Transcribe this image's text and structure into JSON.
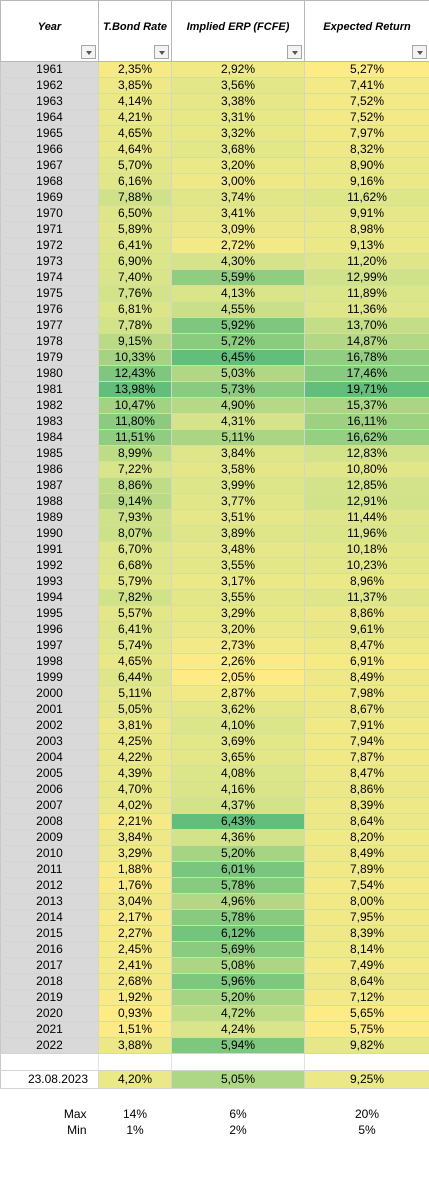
{
  "headers": {
    "year": "Year",
    "tbond": "T.Bond Rate",
    "erp": "Implied ERP (FCFE)",
    "exp": "Expected Return"
  },
  "rows": [
    {
      "year": "1961",
      "tbond": "2,35%",
      "erp": "2,92%",
      "exp": "5,27%"
    },
    {
      "year": "1962",
      "tbond": "3,85%",
      "erp": "3,56%",
      "exp": "7,41%"
    },
    {
      "year": "1963",
      "tbond": "4,14%",
      "erp": "3,38%",
      "exp": "7,52%"
    },
    {
      "year": "1964",
      "tbond": "4,21%",
      "erp": "3,31%",
      "exp": "7,52%"
    },
    {
      "year": "1965",
      "tbond": "4,65%",
      "erp": "3,32%",
      "exp": "7,97%"
    },
    {
      "year": "1966",
      "tbond": "4,64%",
      "erp": "3,68%",
      "exp": "8,32%"
    },
    {
      "year": "1967",
      "tbond": "5,70%",
      "erp": "3,20%",
      "exp": "8,90%"
    },
    {
      "year": "1968",
      "tbond": "6,16%",
      "erp": "3,00%",
      "exp": "9,16%"
    },
    {
      "year": "1969",
      "tbond": "7,88%",
      "erp": "3,74%",
      "exp": "11,62%"
    },
    {
      "year": "1970",
      "tbond": "6,50%",
      "erp": "3,41%",
      "exp": "9,91%"
    },
    {
      "year": "1971",
      "tbond": "5,89%",
      "erp": "3,09%",
      "exp": "8,98%"
    },
    {
      "year": "1972",
      "tbond": "6,41%",
      "erp": "2,72%",
      "exp": "9,13%"
    },
    {
      "year": "1973",
      "tbond": "6,90%",
      "erp": "4,30%",
      "exp": "11,20%"
    },
    {
      "year": "1974",
      "tbond": "7,40%",
      "erp": "5,59%",
      "exp": "12,99%"
    },
    {
      "year": "1975",
      "tbond": "7,76%",
      "erp": "4,13%",
      "exp": "11,89%"
    },
    {
      "year": "1976",
      "tbond": "6,81%",
      "erp": "4,55%",
      "exp": "11,36%"
    },
    {
      "year": "1977",
      "tbond": "7,78%",
      "erp": "5,92%",
      "exp": "13,70%"
    },
    {
      "year": "1978",
      "tbond": "9,15%",
      "erp": "5,72%",
      "exp": "14,87%"
    },
    {
      "year": "1979",
      "tbond": "10,33%",
      "erp": "6,45%",
      "exp": "16,78%"
    },
    {
      "year": "1980",
      "tbond": "12,43%",
      "erp": "5,03%",
      "exp": "17,46%"
    },
    {
      "year": "1981",
      "tbond": "13,98%",
      "erp": "5,73%",
      "exp": "19,71%"
    },
    {
      "year": "1982",
      "tbond": "10,47%",
      "erp": "4,90%",
      "exp": "15,37%"
    },
    {
      "year": "1983",
      "tbond": "11,80%",
      "erp": "4,31%",
      "exp": "16,11%"
    },
    {
      "year": "1984",
      "tbond": "11,51%",
      "erp": "5,11%",
      "exp": "16,62%"
    },
    {
      "year": "1985",
      "tbond": "8,99%",
      "erp": "3,84%",
      "exp": "12,83%"
    },
    {
      "year": "1986",
      "tbond": "7,22%",
      "erp": "3,58%",
      "exp": "10,80%"
    },
    {
      "year": "1987",
      "tbond": "8,86%",
      "erp": "3,99%",
      "exp": "12,85%"
    },
    {
      "year": "1988",
      "tbond": "9,14%",
      "erp": "3,77%",
      "exp": "12,91%"
    },
    {
      "year": "1989",
      "tbond": "7,93%",
      "erp": "3,51%",
      "exp": "11,44%"
    },
    {
      "year": "1990",
      "tbond": "8,07%",
      "erp": "3,89%",
      "exp": "11,96%"
    },
    {
      "year": "1991",
      "tbond": "6,70%",
      "erp": "3,48%",
      "exp": "10,18%"
    },
    {
      "year": "1992",
      "tbond": "6,68%",
      "erp": "3,55%",
      "exp": "10,23%"
    },
    {
      "year": "1993",
      "tbond": "5,79%",
      "erp": "3,17%",
      "exp": "8,96%"
    },
    {
      "year": "1994",
      "tbond": "7,82%",
      "erp": "3,55%",
      "exp": "11,37%"
    },
    {
      "year": "1995",
      "tbond": "5,57%",
      "erp": "3,29%",
      "exp": "8,86%"
    },
    {
      "year": "1996",
      "tbond": "6,41%",
      "erp": "3,20%",
      "exp": "9,61%"
    },
    {
      "year": "1997",
      "tbond": "5,74%",
      "erp": "2,73%",
      "exp": "8,47%"
    },
    {
      "year": "1998",
      "tbond": "4,65%",
      "erp": "2,26%",
      "exp": "6,91%"
    },
    {
      "year": "1999",
      "tbond": "6,44%",
      "erp": "2,05%",
      "exp": "8,49%"
    },
    {
      "year": "2000",
      "tbond": "5,11%",
      "erp": "2,87%",
      "exp": "7,98%"
    },
    {
      "year": "2001",
      "tbond": "5,05%",
      "erp": "3,62%",
      "exp": "8,67%"
    },
    {
      "year": "2002",
      "tbond": "3,81%",
      "erp": "4,10%",
      "exp": "7,91%"
    },
    {
      "year": "2003",
      "tbond": "4,25%",
      "erp": "3,69%",
      "exp": "7,94%"
    },
    {
      "year": "2004",
      "tbond": "4,22%",
      "erp": "3,65%",
      "exp": "7,87%"
    },
    {
      "year": "2005",
      "tbond": "4,39%",
      "erp": "4,08%",
      "exp": "8,47%"
    },
    {
      "year": "2006",
      "tbond": "4,70%",
      "erp": "4,16%",
      "exp": "8,86%"
    },
    {
      "year": "2007",
      "tbond": "4,02%",
      "erp": "4,37%",
      "exp": "8,39%"
    },
    {
      "year": "2008",
      "tbond": "2,21%",
      "erp": "6,43%",
      "exp": "8,64%"
    },
    {
      "year": "2009",
      "tbond": "3,84%",
      "erp": "4,36%",
      "exp": "8,20%"
    },
    {
      "year": "2010",
      "tbond": "3,29%",
      "erp": "5,20%",
      "exp": "8,49%"
    },
    {
      "year": "2011",
      "tbond": "1,88%",
      "erp": "6,01%",
      "exp": "7,89%"
    },
    {
      "year": "2012",
      "tbond": "1,76%",
      "erp": "5,78%",
      "exp": "7,54%"
    },
    {
      "year": "2013",
      "tbond": "3,04%",
      "erp": "4,96%",
      "exp": "8,00%"
    },
    {
      "year": "2014",
      "tbond": "2,17%",
      "erp": "5,78%",
      "exp": "7,95%"
    },
    {
      "year": "2015",
      "tbond": "2,27%",
      "erp": "6,12%",
      "exp": "8,39%"
    },
    {
      "year": "2016",
      "tbond": "2,45%",
      "erp": "5,69%",
      "exp": "8,14%"
    },
    {
      "year": "2017",
      "tbond": "2,41%",
      "erp": "5,08%",
      "exp": "7,49%"
    },
    {
      "year": "2018",
      "tbond": "2,68%",
      "erp": "5,96%",
      "exp": "8,64%"
    },
    {
      "year": "2019",
      "tbond": "1,92%",
      "erp": "5,20%",
      "exp": "7,12%"
    },
    {
      "year": "2020",
      "tbond": "0,93%",
      "erp": "4,72%",
      "exp": "5,65%"
    },
    {
      "year": "2021",
      "tbond": "1,51%",
      "erp": "4,24%",
      "exp": "5,75%"
    },
    {
      "year": "2022",
      "tbond": "3,88%",
      "erp": "5,94%",
      "exp": "9,82%"
    }
  ],
  "current": {
    "year": "23.08.2023",
    "tbond": "4,20%",
    "erp": "5,05%",
    "exp": "9,25%"
  },
  "summary": [
    {
      "label": "Max",
      "tbond": "14%",
      "erp": "6%",
      "exp": "20%"
    },
    {
      "label": "Min",
      "tbond": "1%",
      "erp": "2%",
      "exp": "5%"
    }
  ],
  "colors": {
    "scale_low": "#ffeb84",
    "scale_mid": "#d8e58a",
    "scale_high": "#63be7b",
    "year_fill": "#d9d9d9"
  }
}
